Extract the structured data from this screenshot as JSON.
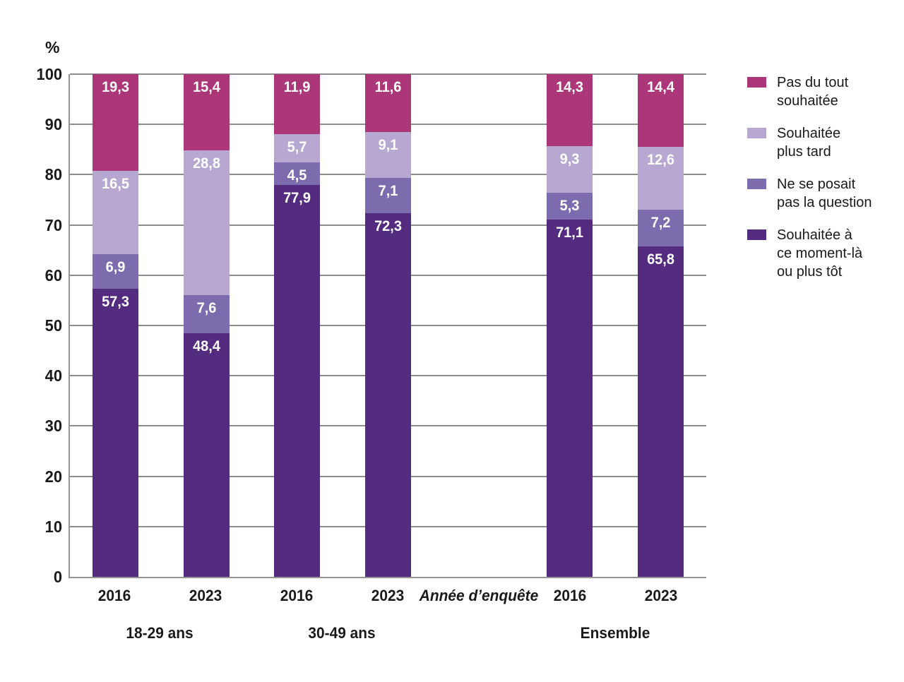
{
  "chart_data": {
    "type": "bar",
    "stacked": true,
    "percent_total": 100,
    "title": "",
    "ylabel": "%",
    "xlabel": "Année d’enquête",
    "ylim": [
      0,
      100
    ],
    "yticks": [
      0,
      10,
      20,
      30,
      40,
      50,
      60,
      70,
      80,
      90,
      100
    ],
    "grid": "horizontal",
    "legend_position": "right",
    "decimal_separator": ",",
    "series_bottom_to_top": [
      {
        "name": "Souhaitée à ce moment-là ou plus tôt",
        "color": "#532c80"
      },
      {
        "name": "Ne se posait pas la question",
        "color": "#7d6cad"
      },
      {
        "name": "Souhaitée plus tard",
        "color": "#b7a8d1"
      },
      {
        "name": "Pas du tout souhaitée",
        "color": "#ab3678"
      }
    ],
    "legend": [
      {
        "label": "Pas du tout\nsouhaitée",
        "color": "#ab3678"
      },
      {
        "label": "Souhaitée\nplus tard",
        "color": "#b7a8d1"
      },
      {
        "label": "Ne se posait\npas la question",
        "color": "#7d6cad"
      },
      {
        "label": "Souhaitée à\nce moment-là\nou plus tôt",
        "color": "#532c80"
      }
    ],
    "groups": [
      {
        "label": "18-29 ans",
        "bars": [
          {
            "x": "2016",
            "values_bottom_to_top": [
              57.3,
              6.9,
              16.5,
              19.3
            ]
          },
          {
            "x": "2023",
            "values_bottom_to_top": [
              48.4,
              7.6,
              28.8,
              15.4
            ]
          }
        ]
      },
      {
        "label": "30-49 ans",
        "bars": [
          {
            "x": "2016",
            "values_bottom_to_top": [
              77.9,
              4.5,
              5.7,
              11.9
            ]
          },
          {
            "x": "2023",
            "values_bottom_to_top": [
              72.3,
              7.1,
              9.1,
              11.6
            ]
          }
        ]
      },
      {
        "label": "Ensemble",
        "bars": [
          {
            "x": "2016",
            "values_bottom_to_top": [
              71.1,
              5.3,
              9.3,
              14.3
            ]
          },
          {
            "x": "2023",
            "values_bottom_to_top": [
              65.8,
              7.2,
              12.6,
              14.4
            ]
          }
        ]
      }
    ]
  }
}
